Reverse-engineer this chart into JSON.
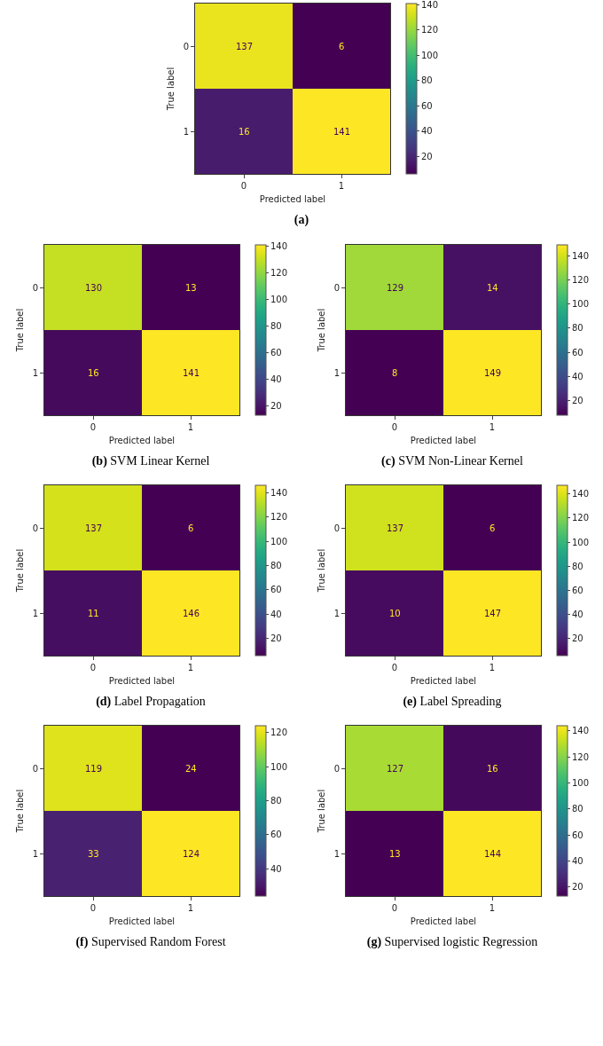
{
  "chart_data": [
    {
      "type": "heatmap",
      "title": "(a)",
      "xlabel": "Predicted label",
      "ylabel": "True label",
      "categories": [
        "0",
        "1"
      ],
      "y_categories": [
        "0",
        "1"
      ],
      "cells": [
        [
          137,
          6
        ],
        [
          16,
          141
        ]
      ],
      "data_labels": true,
      "clim": [
        6,
        141
      ],
      "cticks": [
        20,
        40,
        60,
        80,
        100,
        120,
        140
      ]
    },
    {
      "type": "heatmap",
      "title": "(b) SVM Linear Kernel",
      "xlabel": "Predicted label",
      "ylabel": "True label",
      "categories": [
        "0",
        "1"
      ],
      "y_categories": [
        "0",
        "1"
      ],
      "cells": [
        [
          130,
          13
        ],
        [
          16,
          141
        ]
      ],
      "data_labels": true,
      "clim": [
        13,
        141
      ],
      "cticks": [
        20,
        40,
        60,
        80,
        100,
        120,
        140
      ]
    },
    {
      "type": "heatmap",
      "title": "(c) SVM Non-Linear Kernel",
      "xlabel": "Predicted label",
      "ylabel": "True label",
      "categories": [
        "0",
        "1"
      ],
      "y_categories": [
        "0",
        "1"
      ],
      "cells": [
        [
          129,
          14
        ],
        [
          8,
          149
        ]
      ],
      "data_labels": true,
      "clim": [
        8,
        149
      ],
      "cticks": [
        20,
        40,
        60,
        80,
        100,
        120,
        140
      ]
    },
    {
      "type": "heatmap",
      "title": "(d) Label Propagation",
      "xlabel": "Predicted label",
      "ylabel": "True label",
      "categories": [
        "0",
        "1"
      ],
      "y_categories": [
        "0",
        "1"
      ],
      "cells": [
        [
          137,
          6
        ],
        [
          11,
          146
        ]
      ],
      "data_labels": true,
      "clim": [
        6,
        146
      ],
      "cticks": [
        20,
        40,
        60,
        80,
        100,
        120,
        140
      ]
    },
    {
      "type": "heatmap",
      "title": "(e) Label Spreading",
      "xlabel": "Predicted label",
      "ylabel": "True label",
      "categories": [
        "0",
        "1"
      ],
      "y_categories": [
        "0",
        "1"
      ],
      "cells": [
        [
          137,
          6
        ],
        [
          10,
          147
        ]
      ],
      "data_labels": true,
      "clim": [
        6,
        147
      ],
      "cticks": [
        20,
        40,
        60,
        80,
        100,
        120,
        140
      ]
    },
    {
      "type": "heatmap",
      "title": "(f) Supervised Random Forest",
      "xlabel": "Predicted label",
      "ylabel": "True label",
      "categories": [
        "0",
        "1"
      ],
      "y_categories": [
        "0",
        "1"
      ],
      "cells": [
        [
          119,
          24
        ],
        [
          33,
          124
        ]
      ],
      "data_labels": true,
      "clim": [
        24,
        124
      ],
      "cticks": [
        40,
        60,
        80,
        100,
        120
      ]
    },
    {
      "type": "heatmap",
      "title": "(g) Supervised logistic Regression",
      "xlabel": "Predicted label",
      "ylabel": "True label",
      "categories": [
        "0",
        "1"
      ],
      "y_categories": [
        "0",
        "1"
      ],
      "cells": [
        [
          127,
          16
        ],
        [
          13,
          144
        ]
      ],
      "data_labels": true,
      "clim": [
        13,
        144
      ],
      "cticks": [
        20,
        40,
        60,
        80,
        100,
        120,
        140
      ]
    }
  ]
}
